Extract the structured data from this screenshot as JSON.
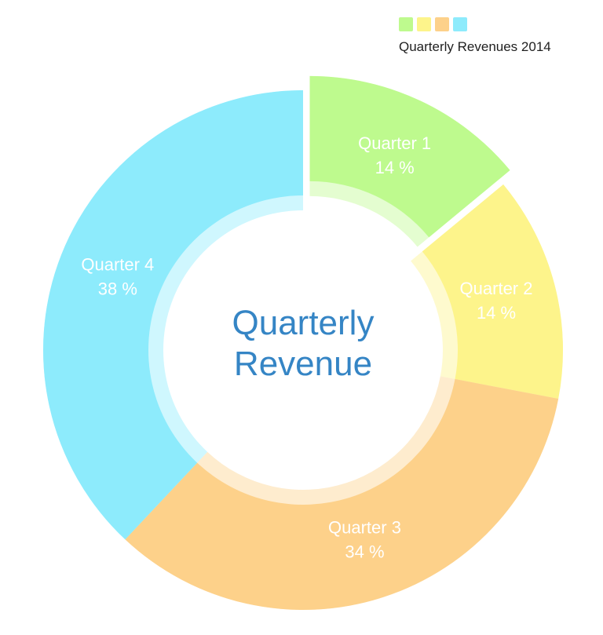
{
  "chart_data": {
    "type": "pie",
    "subtype": "donut",
    "title": "Quarterly Revenue",
    "title_lines": [
      "Quarterly",
      "Revenue"
    ],
    "legend": {
      "title": "Quarterly Revenues 2014",
      "position": "top-right"
    },
    "unit": "%",
    "start_angle_deg": 0,
    "direction": "clockwise",
    "slices": [
      {
        "label": "Quarter 1",
        "value": 14,
        "display": "14 %",
        "color": "#befa8e",
        "exploded": true
      },
      {
        "label": "Quarter 2",
        "value": 14,
        "display": "14 %",
        "color": "#fdf48b",
        "exploded": false
      },
      {
        "label": "Quarter 3",
        "value": 34,
        "display": "34 %",
        "color": "#fdd18a",
        "exploded": false
      },
      {
        "label": "Quarter 4",
        "value": 38,
        "display": "38 %",
        "color": "#8debfc",
        "exploded": false
      }
    ],
    "colors": {
      "title_text": "#3585c5",
      "slice_label_text": "#ffffff",
      "legend_text": "#1f1f1f",
      "background": "#ffffff"
    }
  }
}
